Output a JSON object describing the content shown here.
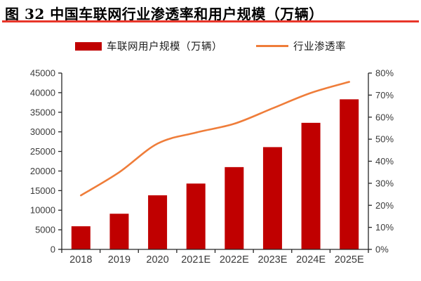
{
  "header": {
    "title": "图 32  中国车联网行业渗透率和用户规模（万辆）",
    "rule_color": "#e8362a"
  },
  "legend": {
    "bar_label": "车联网用户规模（万辆）",
    "line_label": "行业渗透率"
  },
  "colors": {
    "bar": "#c00000",
    "line": "#ef7d3a",
    "axis": "#262626",
    "tick_text": "#3a3a3a"
  },
  "chart_data": {
    "type": "bar",
    "subtype": "bar+line combo, dual axis",
    "title": "中国车联网行业渗透率和用户规模（万辆）",
    "categories": [
      "2018",
      "2019",
      "2020",
      "2021E",
      "2022E",
      "2023E",
      "2024E",
      "2025E"
    ],
    "series": [
      {
        "name": "车联网用户规模（万辆）",
        "type": "bar",
        "axis": "left",
        "values": [
          5900,
          9100,
          13800,
          16800,
          21000,
          26100,
          32300,
          38300
        ]
      },
      {
        "name": "行业渗透率",
        "type": "line",
        "axis": "right",
        "smoothed": true,
        "values_percent": [
          24.5,
          35,
          48,
          53,
          57,
          64,
          71,
          76
        ]
      }
    ],
    "left_axis": {
      "min": 0,
      "max": 45000,
      "step": 5000,
      "tick_labels": [
        "0",
        "5000",
        "10000",
        "15000",
        "20000",
        "25000",
        "30000",
        "35000",
        "40000",
        "45000"
      ]
    },
    "right_axis": {
      "min": 0,
      "max": 80,
      "step": 10,
      "tick_labels": [
        "0%",
        "10%",
        "20%",
        "30%",
        "40%",
        "50%",
        "60%",
        "70%",
        "80%"
      ]
    },
    "grid": false,
    "legend_position": "top"
  }
}
